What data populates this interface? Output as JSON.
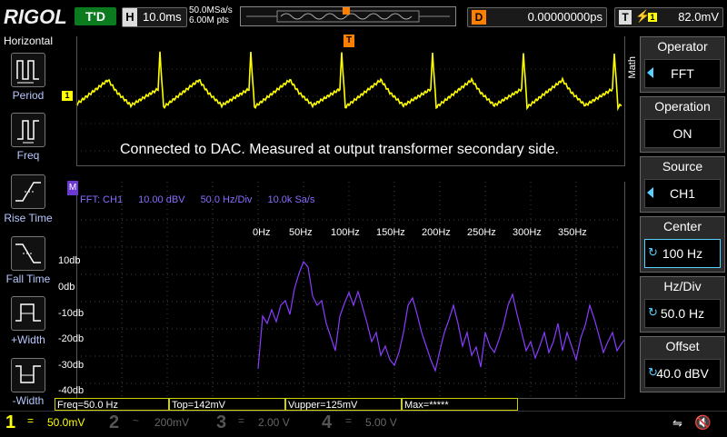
{
  "brand": {
    "logo_main": "RIGOL"
  },
  "top": {
    "run_state": "T'D",
    "timebase_key": "H",
    "timebase_value": "10.0ms",
    "sample_rate": "50.0MSa/s",
    "mem_depth": "6.00M pts",
    "delay_key": "D",
    "delay_value": "0.00000000ps",
    "trigger_key": "T",
    "trigger_value": "82.0mV",
    "trigger_marker": "T"
  },
  "left_panel": {
    "title": "Horizontal",
    "items": [
      {
        "label": "Period",
        "icon": "period-icon"
      },
      {
        "label": "Freq",
        "icon": "freq-icon"
      },
      {
        "label": "Rise Time",
        "icon": "rise-time-icon"
      },
      {
        "label": "Fall Time",
        "icon": "fall-time-icon"
      },
      {
        "label": "+Width",
        "icon": "pos-width-icon"
      },
      {
        "label": "-Width",
        "icon": "neg-width-icon"
      }
    ]
  },
  "screen": {
    "ch1_marker": "1",
    "annotation": "Connected to DAC. Measured at output transformer secondary side.",
    "fft": {
      "marker": "M",
      "info": [
        "FFT: CH1",
        "10.00 dBV",
        "50.0 Hz/Div",
        "10.0k Sa/s"
      ],
      "freq_labels": [
        "0Hz",
        "50Hz",
        "100Hz",
        "150Hz",
        "200Hz",
        "250Hz",
        "300Hz",
        "350Hz"
      ],
      "db_labels": [
        "10db",
        "0db",
        "-10db",
        "-20db",
        "-30db",
        "-40db"
      ]
    },
    "measurements": [
      "Freq=50.0 Hz",
      "Top=142mV",
      "Vupper=125mV",
      "Max=*****"
    ]
  },
  "right_menu": {
    "math_label": "Math",
    "items": [
      {
        "title": "Operator",
        "value": "FFT"
      },
      {
        "title": "Operation",
        "value": "ON"
      },
      {
        "title": "Source",
        "value": "CH1"
      },
      {
        "title": "Center",
        "value": "100 Hz"
      },
      {
        "title": "Hz/Div",
        "value": "50.0 Hz"
      },
      {
        "title": "Offset",
        "value": "40.0 dBV"
      }
    ]
  },
  "channels": [
    {
      "num": "1",
      "coupling": "=",
      "scale": "50.0mV",
      "color": "#ffff00"
    },
    {
      "num": "2",
      "coupling": "~",
      "scale": "200mV",
      "color": "#00e0ff"
    },
    {
      "num": "3",
      "coupling": "=",
      "scale": "2.00 V",
      "color": "#ff40ff"
    },
    {
      "num": "4",
      "coupling": "=",
      "scale": "5.00 V",
      "color": "#3070ff"
    }
  ],
  "colors": {
    "ch1": "#ffff00",
    "math": "#8a3cff",
    "trigger": "#ff8000",
    "run": "#0c7a1e",
    "menu_accent": "#5ad0ff"
  }
}
